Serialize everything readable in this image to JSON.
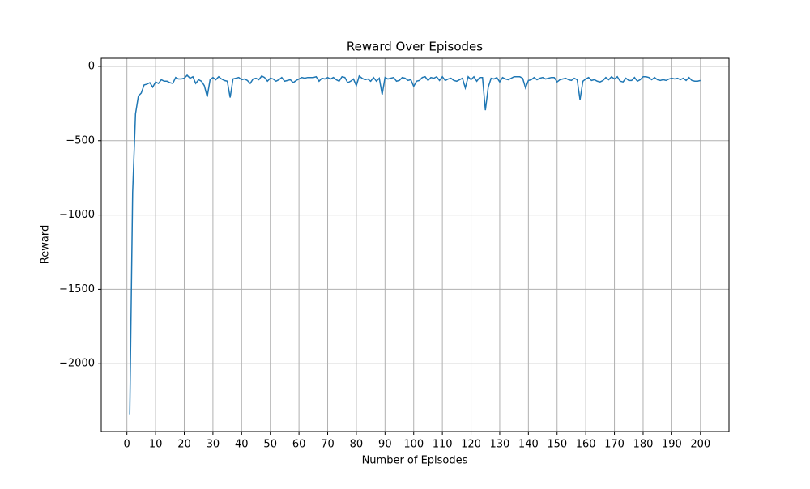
{
  "chart_data": {
    "type": "line",
    "title": "Reward Over Episodes",
    "xlabel": "Number of Episodes",
    "ylabel": "Reward",
    "x": [
      1,
      2,
      3,
      4,
      5,
      6,
      7,
      8,
      9,
      10,
      11,
      12,
      13,
      14,
      15,
      16,
      17,
      18,
      19,
      20,
      21,
      22,
      23,
      24,
      25,
      26,
      27,
      28,
      29,
      30,
      31,
      32,
      33,
      34,
      35,
      36,
      37,
      38,
      39,
      40,
      41,
      42,
      43,
      44,
      45,
      46,
      47,
      48,
      49,
      50,
      51,
      52,
      53,
      54,
      55,
      56,
      57,
      58,
      59,
      60,
      61,
      62,
      63,
      64,
      65,
      66,
      67,
      68,
      69,
      70,
      71,
      72,
      73,
      74,
      75,
      76,
      77,
      78,
      79,
      80,
      81,
      82,
      83,
      84,
      85,
      86,
      87,
      88,
      89,
      90,
      91,
      92,
      93,
      94,
      95,
      96,
      97,
      98,
      99,
      100,
      101,
      102,
      103,
      104,
      105,
      106,
      107,
      108,
      109,
      110,
      111,
      112,
      113,
      114,
      115,
      116,
      117,
      118,
      119,
      120,
      121,
      122,
      123,
      124,
      125,
      126,
      127,
      128,
      129,
      130,
      131,
      132,
      133,
      134,
      135,
      136,
      137,
      138,
      139,
      140,
      141,
      142,
      143,
      144,
      145,
      146,
      147,
      148,
      149,
      150,
      151,
      152,
      153,
      154,
      155,
      156,
      157,
      158,
      159,
      160,
      161,
      162,
      163,
      164,
      165,
      166,
      167,
      168,
      169,
      170,
      171,
      172,
      173,
      174,
      175,
      176,
      177,
      178,
      179,
      180,
      181,
      182,
      183,
      184,
      185,
      186,
      187,
      188,
      189,
      190,
      191,
      192,
      193,
      194,
      195,
      196,
      197,
      198,
      199,
      200
    ],
    "series": [
      {
        "name": "Reward",
        "color": "#1f77b4",
        "values": [
          -2340,
          -850,
          -320,
          -200,
          -180,
          -125,
          -120,
          -110,
          -140,
          -105,
          -115,
          -90,
          -100,
          -100,
          -110,
          -115,
          -75,
          -85,
          -85,
          -80,
          -60,
          -80,
          -70,
          -115,
          -90,
          -100,
          -130,
          -205,
          -90,
          -75,
          -90,
          -70,
          -85,
          -95,
          -100,
          -210,
          -85,
          -80,
          -75,
          -90,
          -85,
          -95,
          -115,
          -85,
          -80,
          -90,
          -65,
          -75,
          -100,
          -80,
          -85,
          -100,
          -90,
          -75,
          -100,
          -95,
          -90,
          -110,
          -95,
          -85,
          -75,
          -80,
          -75,
          -75,
          -75,
          -70,
          -100,
          -80,
          -85,
          -75,
          -85,
          -75,
          -90,
          -100,
          -70,
          -75,
          -110,
          -100,
          -85,
          -130,
          -65,
          -80,
          -90,
          -85,
          -100,
          -75,
          -100,
          -80,
          -190,
          -75,
          -85,
          -80,
          -75,
          -100,
          -95,
          -75,
          -80,
          -95,
          -90,
          -135,
          -100,
          -95,
          -75,
          -70,
          -95,
          -75,
          -80,
          -70,
          -95,
          -70,
          -95,
          -85,
          -80,
          -95,
          -100,
          -90,
          -80,
          -145,
          -70,
          -90,
          -70,
          -100,
          -75,
          -75,
          -295,
          -140,
          -80,
          -85,
          -75,
          -105,
          -75,
          -85,
          -90,
          -80,
          -70,
          -70,
          -70,
          -80,
          -145,
          -95,
          -90,
          -75,
          -90,
          -80,
          -75,
          -85,
          -80,
          -75,
          -75,
          -105,
          -90,
          -85,
          -80,
          -90,
          -95,
          -80,
          -90,
          -225,
          -100,
          -85,
          -75,
          -95,
          -90,
          -100,
          -105,
          -95,
          -75,
          -90,
          -70,
          -85,
          -70,
          -100,
          -105,
          -80,
          -95,
          -95,
          -75,
          -100,
          -90,
          -70,
          -70,
          -75,
          -90,
          -75,
          -90,
          -95,
          -90,
          -95,
          -85,
          -80,
          -85,
          -80,
          -90,
          -80,
          -95,
          -75,
          -95,
          -100,
          -100,
          -95
        ]
      }
    ],
    "xlim": [
      -8.95,
      209.95
    ],
    "ylim": [
      -2456,
      54
    ],
    "xticks": [
      0,
      10,
      20,
      30,
      40,
      50,
      60,
      70,
      80,
      90,
      100,
      110,
      120,
      130,
      140,
      150,
      160,
      170,
      180,
      190,
      200
    ],
    "yticks": [
      {
        "value": -2000,
        "label": "−2000"
      },
      {
        "value": -1500,
        "label": "−1500"
      },
      {
        "value": -1000,
        "label": "−1000"
      },
      {
        "value": -500,
        "label": "−500"
      },
      0
    ],
    "grid": true
  }
}
